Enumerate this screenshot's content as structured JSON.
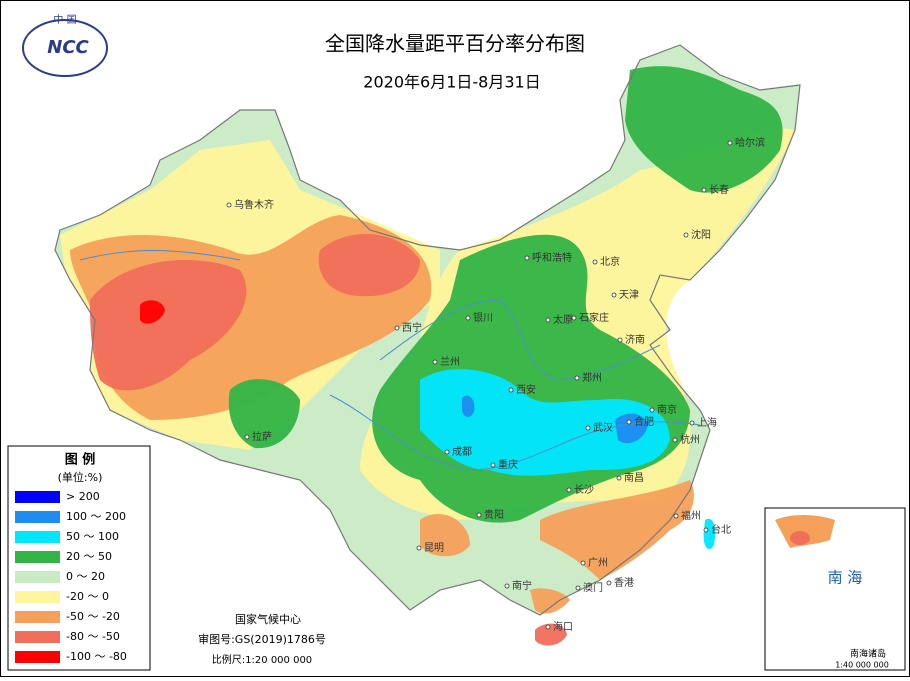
{
  "header": {
    "logo": "NCC",
    "logo_caption": "中 国",
    "title": "全国降水量距平百分率分布图",
    "subtitle": "2020年6月1日-8月31日"
  },
  "legend": {
    "title": "图 例",
    "unit": "(单位:%)",
    "items": [
      {
        "label": "> 200",
        "color": "#0000ff"
      },
      {
        "label": "100 ～ 200",
        "color": "#1e8cf0"
      },
      {
        "label": "50 ～ 100",
        "color": "#00e6ff"
      },
      {
        "label": "20 ～ 50",
        "color": "#32b446"
      },
      {
        "label": "0 ～ 20",
        "color": "#c8ebc3"
      },
      {
        "label": "-20 ～ 0",
        "color": "#fff59b"
      },
      {
        "label": "-50 ～ -20",
        "color": "#f5a05a"
      },
      {
        "label": "-80 ～ -50",
        "color": "#f06e5a"
      },
      {
        "label": "-100 ～ -80",
        "color": "#ff0000"
      }
    ]
  },
  "cities": [
    "乌鲁木齐",
    "哈尔滨",
    "长春",
    "沈阳",
    "呼和浩特",
    "北京",
    "天津",
    "石家庄",
    "太原",
    "银川",
    "西宁",
    "兰州",
    "济南",
    "郑州",
    "西安",
    "南京",
    "合肥",
    "上海",
    "杭州",
    "武汉",
    "成都",
    "重庆",
    "长沙",
    "南昌",
    "拉萨",
    "贵阳",
    "昆明",
    "南宁",
    "广州",
    "福州",
    "台北",
    "香港",
    "澳门",
    "海口"
  ],
  "credits": {
    "org": "国家气候中心",
    "approval": "审图号:GS(2019)1786号",
    "scale": "比例尺:1:20 000 000"
  },
  "inset": {
    "title": "南 海",
    "caption": "南海诸岛",
    "scale": "1:40 000 000"
  }
}
